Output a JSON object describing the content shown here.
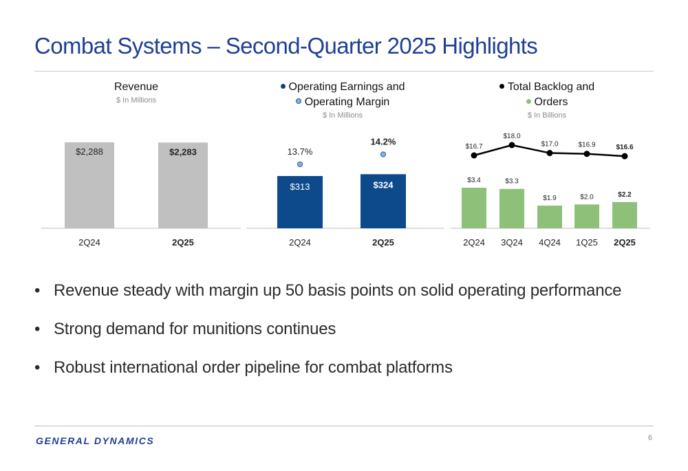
{
  "title": "Combat Systems – Second-Quarter 2025 Highlights",
  "colors": {
    "title": "#1f3f95",
    "revenue_bar": "#c0c0c0",
    "earnings_bar": "#0d4a8c",
    "margin_marker": "#7fb2e3",
    "backlog_line": "#000000",
    "orders_bar": "#8fc07a"
  },
  "revenue": {
    "title": "Revenue",
    "unit": "$ In Millions"
  },
  "earnings": {
    "legend_bar": "Operating Earnings and",
    "legend_marker": "Operating Margin",
    "unit": "$ In Millions"
  },
  "backlog": {
    "legend_line": "Total Backlog and",
    "legend_bar": "Orders",
    "unit": "$ In Billions"
  },
  "chart_data": [
    {
      "type": "bar",
      "title": "Revenue",
      "subtitle": "$ In Millions",
      "categories": [
        "2Q24",
        "2Q25"
      ],
      "values": [
        2288,
        2283
      ],
      "labels": [
        "$2,288",
        "$2,283"
      ],
      "highlight_last": true
    },
    {
      "type": "bar",
      "title": "Operating Earnings and Operating Margin",
      "subtitle": "$ In Millions",
      "categories": [
        "2Q24",
        "2Q25"
      ],
      "series": [
        {
          "name": "Operating Earnings",
          "values": [
            313,
            324
          ],
          "labels": [
            "$313",
            "$324"
          ]
        },
        {
          "name": "Operating Margin",
          "values": [
            13.7,
            14.2
          ],
          "labels": [
            "13.7%",
            "14.2%"
          ],
          "style": "marker"
        }
      ],
      "highlight_last": true
    },
    {
      "type": "bar",
      "title": "Total Backlog and Orders",
      "subtitle": "$ In Billions",
      "categories": [
        "2Q24",
        "3Q24",
        "4Q24",
        "1Q25",
        "2Q25"
      ],
      "series": [
        {
          "name": "Total Backlog",
          "values": [
            16.7,
            18.0,
            17.0,
            16.9,
            16.6
          ],
          "labels": [
            "$16.7",
            "$18.0",
            "$17.0",
            "$16.9",
            "$16.6"
          ],
          "style": "line"
        },
        {
          "name": "Orders",
          "values": [
            3.4,
            3.3,
            1.9,
            2.0,
            2.2
          ],
          "labels": [
            "$3.4",
            "$3.3",
            "$1.9",
            "$2.0",
            "$2.2"
          ],
          "style": "bar"
        }
      ],
      "highlight_last": true
    }
  ],
  "bullets": [
    "Revenue steady with margin up 50 basis points on solid operating performance",
    "Strong demand for munitions continues",
    "Robust international order pipeline for combat platforms"
  ],
  "footer": {
    "logo_text": "GENERAL DYNAMICS",
    "page_number": "6"
  }
}
